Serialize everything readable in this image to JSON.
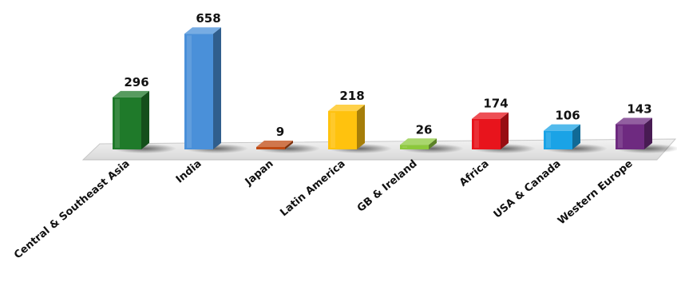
{
  "chart_data": {
    "type": "bar",
    "style": "3d-columns",
    "categories": [
      "Central & Southeast Asia",
      "India",
      "Japan",
      "Latin America",
      "GB & Ireland",
      "Africa",
      "USA & Canada",
      "Western Europe"
    ],
    "values": [
      296,
      658,
      9,
      218,
      26,
      174,
      106,
      143
    ],
    "value_labels": [
      "296",
      "658",
      "9",
      "218",
      "26",
      "174",
      "106",
      "143"
    ],
    "colors": [
      "#1f7a2a",
      "#4a90d9",
      "#c04a12",
      "#ffc20e",
      "#8cc83c",
      "#e8141c",
      "#1aa3e6",
      "#6e2a80"
    ],
    "title": "",
    "xlabel": "",
    "ylabel": "",
    "ylim": [
      0,
      700
    ],
    "grid": false,
    "legend": "none",
    "data_labels": true
  }
}
